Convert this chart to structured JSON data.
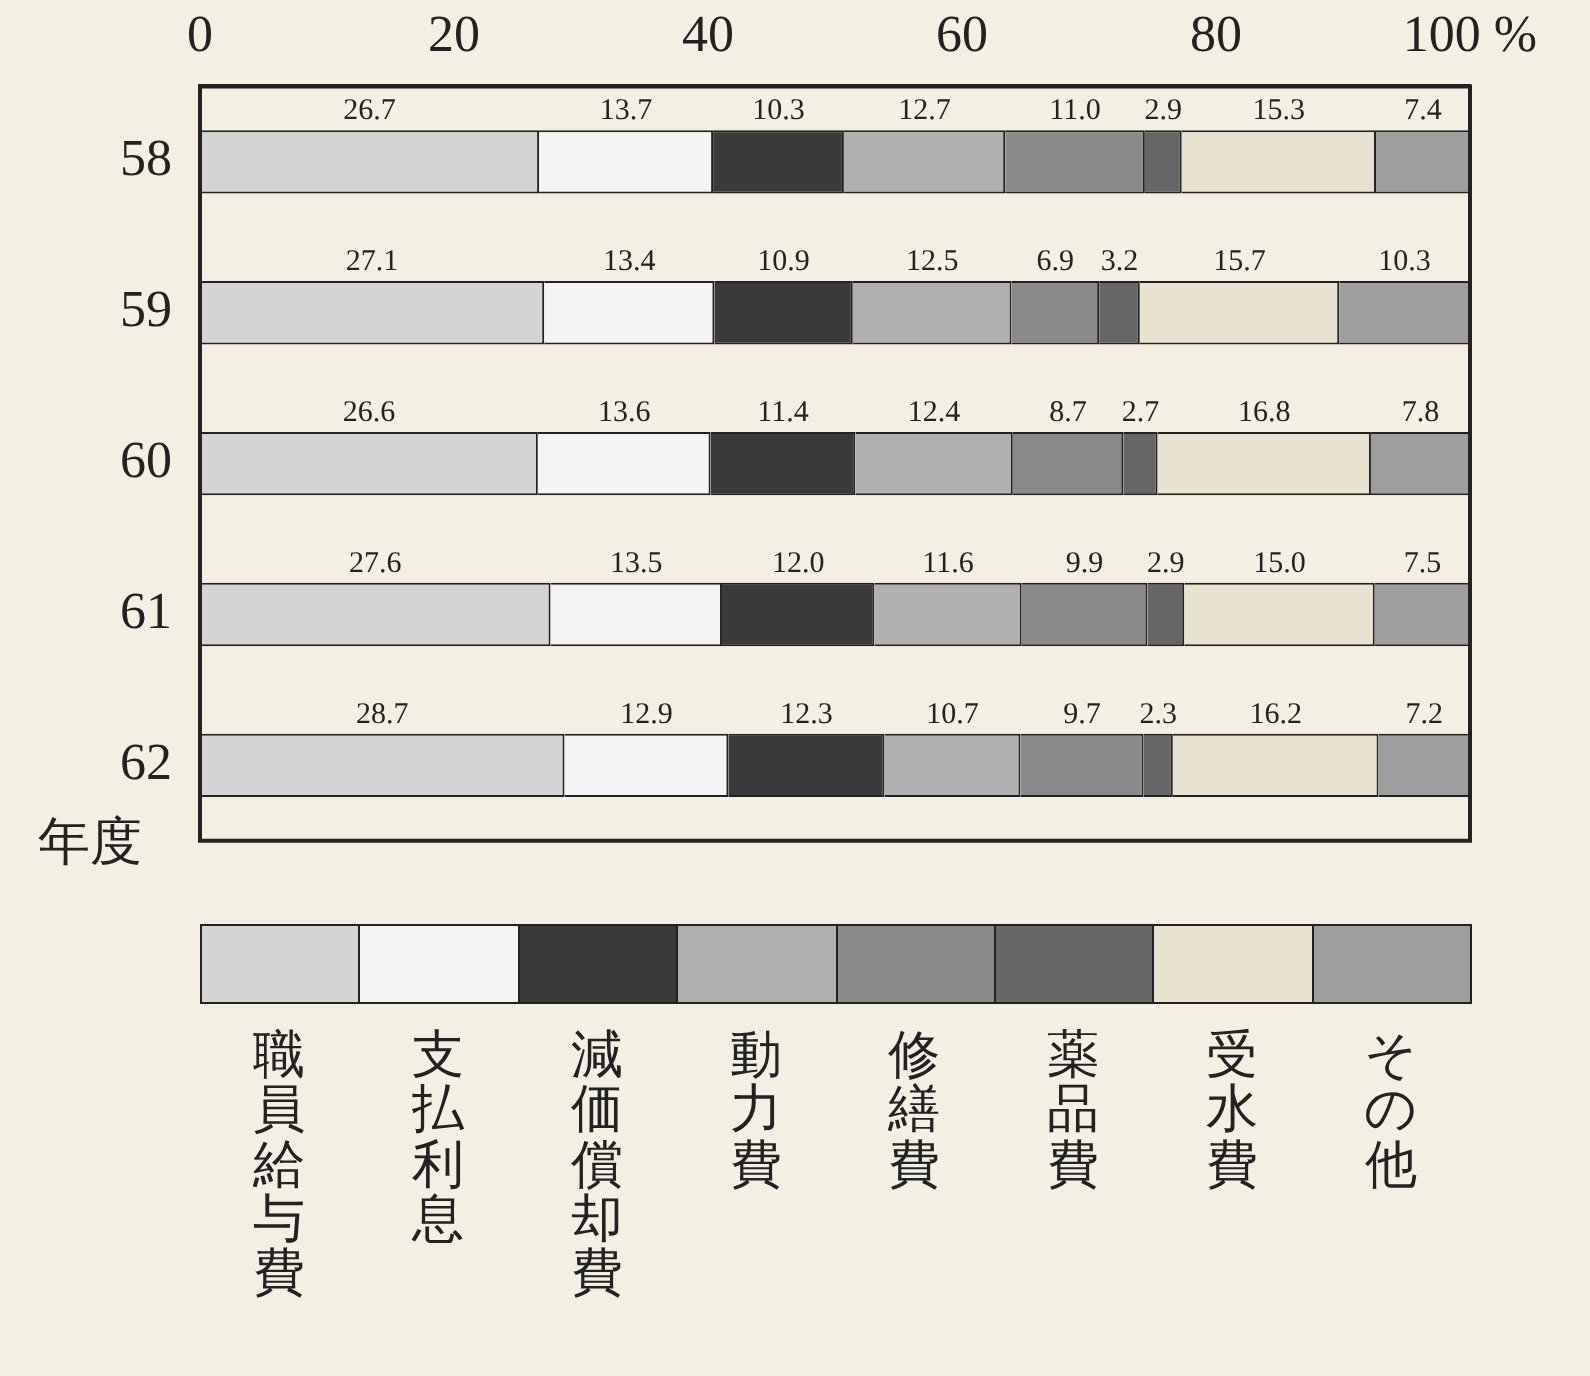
{
  "chart_data": {
    "type": "bar",
    "orientation": "horizontal",
    "stacked": true,
    "ylabel": "年度",
    "categories": [
      "58",
      "59",
      "60",
      "61",
      "62"
    ],
    "xlim": [
      0,
      100
    ],
    "xticks": [
      0,
      20,
      40,
      60,
      80,
      {
        "value": 100,
        "label": "100 %"
      }
    ],
    "grid": false,
    "legend": "bottom",
    "series": [
      {
        "name": "職員給与費",
        "color": "#d4d4d4",
        "values": [
          26.7,
          27.1,
          26.6,
          27.6,
          28.7
        ],
        "value_labels": [
          "26.7",
          "27.1",
          "26.6",
          "27.6",
          "28.7"
        ]
      },
      {
        "name": "支払利息",
        "color": "#f4f4f4",
        "values": [
          13.7,
          13.4,
          13.6,
          13.5,
          12.9
        ],
        "value_labels": [
          "13.7",
          "13.4",
          "13.6",
          "13.5",
          "12.9"
        ]
      },
      {
        "name": "減価償却費",
        "color": "#3a3a3a",
        "values": [
          10.3,
          10.9,
          11.4,
          12.0,
          12.3
        ],
        "value_labels": [
          "10.3",
          "10.9",
          "11.4",
          "12.0",
          "12.3"
        ]
      },
      {
        "name": "動力費",
        "color": "#b0b0b0",
        "values": [
          12.7,
          12.5,
          12.4,
          11.6,
          10.7
        ],
        "value_labels": [
          "12.7",
          "12.5",
          "12.4",
          "11.6",
          "10.7"
        ]
      },
      {
        "name": "修繕費",
        "color": "#8a8a8a",
        "values": [
          11.0,
          6.9,
          8.7,
          9.9,
          9.7
        ],
        "value_labels": [
          "11.0",
          "6.9",
          "8.7",
          "9.9",
          "9.7"
        ]
      },
      {
        "name": "薬品費",
        "color": "#666666",
        "values": [
          2.9,
          3.2,
          2.7,
          2.9,
          2.3
        ],
        "value_labels": [
          "2.9",
          "3.2",
          "2.7",
          "2.9",
          "2.3"
        ]
      },
      {
        "name": "受水費",
        "color": "#e8e3d0",
        "values": [
          15.3,
          15.7,
          16.8,
          15.0,
          16.2
        ],
        "value_labels": [
          "15.3",
          "15.7",
          "16.8",
          "15.0",
          "16.2"
        ]
      },
      {
        "name": "その他",
        "color": "#9e9e9e",
        "values": [
          7.4,
          10.3,
          7.8,
          7.5,
          7.2
        ],
        "value_labels": [
          "7.4",
          "10.3",
          "7.8",
          "7.5",
          "7.2"
        ]
      }
    ]
  }
}
